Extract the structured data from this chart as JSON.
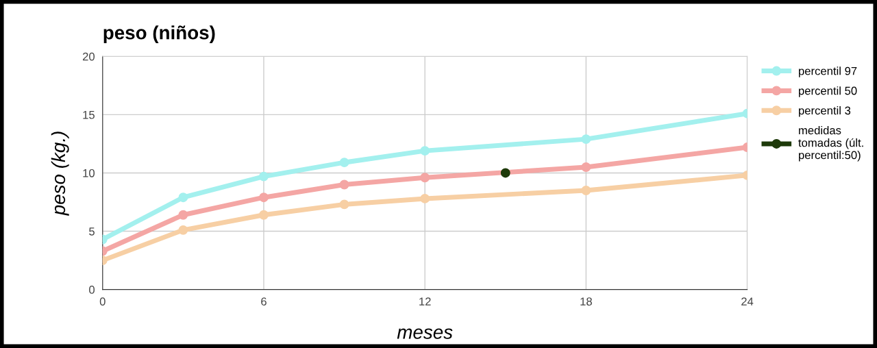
{
  "chart_data": {
    "type": "line",
    "title": "peso (niños)",
    "xlabel": "meses",
    "ylabel": "peso (kg.)",
    "x": [
      0,
      3,
      6,
      9,
      12,
      18,
      24
    ],
    "series": [
      {
        "name": "percentil 97",
        "color": "#a3f0ee",
        "values": [
          4.3,
          7.9,
          9.7,
          10.9,
          11.9,
          12.9,
          15.1
        ]
      },
      {
        "name": "percentil 50",
        "color": "#f4a6a4",
        "values": [
          3.3,
          6.4,
          7.9,
          9.0,
          9.6,
          10.5,
          12.2
        ]
      },
      {
        "name": "percentil 3",
        "color": "#f7cfa4",
        "values": [
          2.5,
          5.1,
          6.4,
          7.3,
          7.8,
          8.5,
          9.8
        ]
      },
      {
        "name": "medidas\ntomadas (últ.\npercentil:50)",
        "color": "#1e3a0a",
        "type": "scatter",
        "x": [
          15
        ],
        "values": [
          10
        ]
      }
    ],
    "xlim": [
      0,
      24
    ],
    "xticks": [
      0,
      6,
      12,
      18,
      24
    ],
    "ylim": [
      0,
      20
    ],
    "yticks": [
      0,
      5,
      10,
      15,
      20
    ],
    "grid": true,
    "legend": "right",
    "marker": "circle"
  }
}
